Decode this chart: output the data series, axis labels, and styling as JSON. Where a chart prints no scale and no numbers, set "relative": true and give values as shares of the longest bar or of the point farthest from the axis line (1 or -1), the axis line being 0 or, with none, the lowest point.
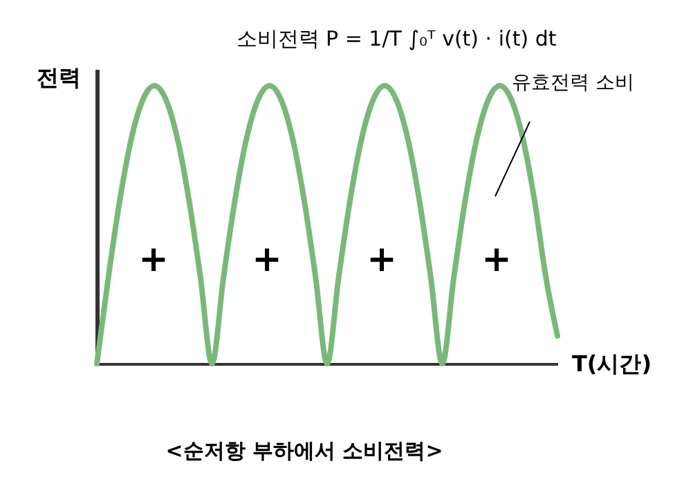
{
  "chart_data": {
    "type": "line",
    "relative": true,
    "title": "소비전력 P = 1/T ∫₀ᵀ v(t) · i(t) dt",
    "xlabel": "T(시간)",
    "ylabel": "전력",
    "categories": [
      null,
      null,
      null,
      null,
      null,
      null,
      null,
      null,
      null,
      null,
      null,
      null,
      null,
      null,
      null,
      null,
      null,
      null,
      null,
      null,
      null,
      null,
      null,
      null,
      null,
      null,
      null,
      null,
      null,
      null,
      null,
      null,
      null,
      null,
      null,
      null,
      null,
      null,
      null,
      null,
      null
    ],
    "series": [
      {
        "color": "#7ab87a",
        "values": [
          0,
          0.31,
          0.59,
          0.81,
          0.95,
          1,
          0.95,
          0.81,
          0.59,
          0.31,
          0,
          0.31,
          0.59,
          0.81,
          0.95,
          1,
          0.95,
          0.81,
          0.59,
          0.31,
          0,
          0.31,
          0.59,
          0.81,
          0.95,
          1,
          0.95,
          0.81,
          0.59,
          0.31,
          0,
          0.31,
          0.59,
          0.81,
          0.95,
          1,
          0.95,
          0.81,
          0.59,
          0.31,
          0.1
        ]
      }
    ],
    "annotations": [
      "유효전력 소비",
      "+",
      "+",
      "+",
      "+",
      "<순저항 부하에서 소비전력>"
    ],
    "grid": false,
    "marker": "none",
    "line_style": "solid"
  }
}
